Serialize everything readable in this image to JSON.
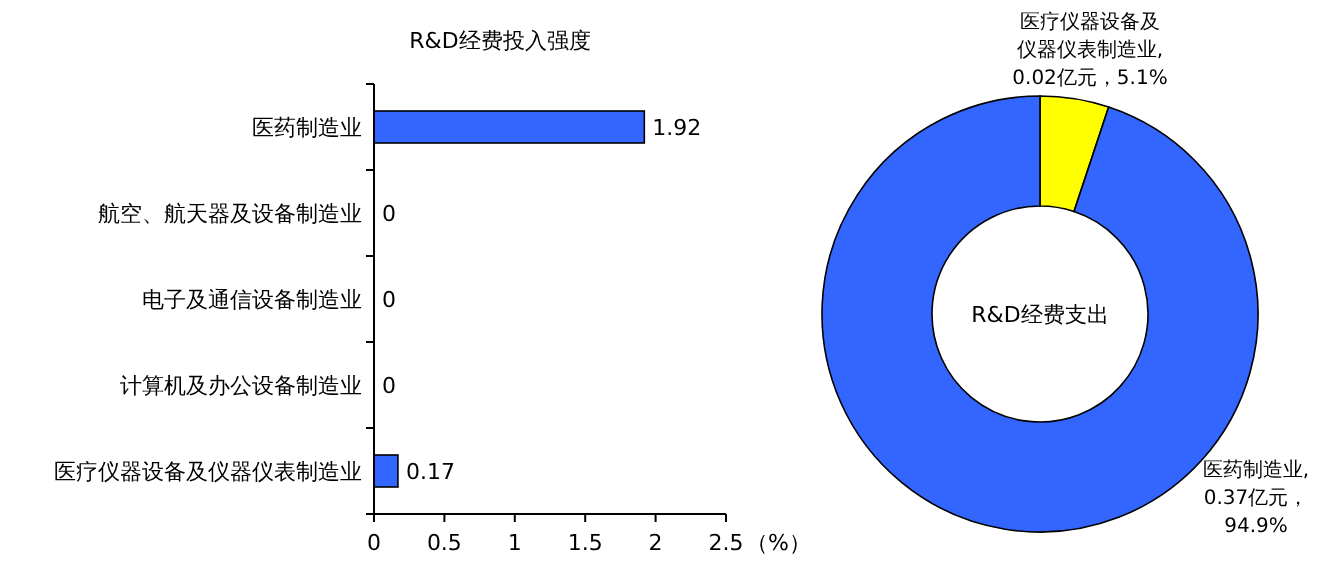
{
  "chart_data": [
    {
      "type": "bar",
      "orientation": "horizontal",
      "title": "R&D经费投入强度",
      "xlabel": "（%）",
      "categories": [
        "医药制造业",
        "航空、航天器及设备制造业",
        "电子及通信设备制造业",
        "计算机及办公设备制造业",
        "医疗仪器设备及仪器仪表制造业"
      ],
      "values": [
        1.92,
        0,
        0,
        0,
        0.17
      ],
      "color": "#3366ff",
      "xlim": [
        0,
        2.5
      ],
      "xticks": [
        0,
        0.5,
        1,
        1.5,
        2,
        2.5
      ],
      "data_labels": true,
      "grid": false
    },
    {
      "type": "donut",
      "title": "R&D经费支出",
      "categories": [
        "医疗仪器设备及仪器仪表制造业",
        "医药制造业"
      ],
      "values": [
        5.1,
        94.9
      ],
      "colors": [
        "#ffff00",
        "#3366ff"
      ],
      "value_labels": [
        ",0.02亿元，5.1%",
        ",0.37亿元，94.9%"
      ]
    }
  ]
}
